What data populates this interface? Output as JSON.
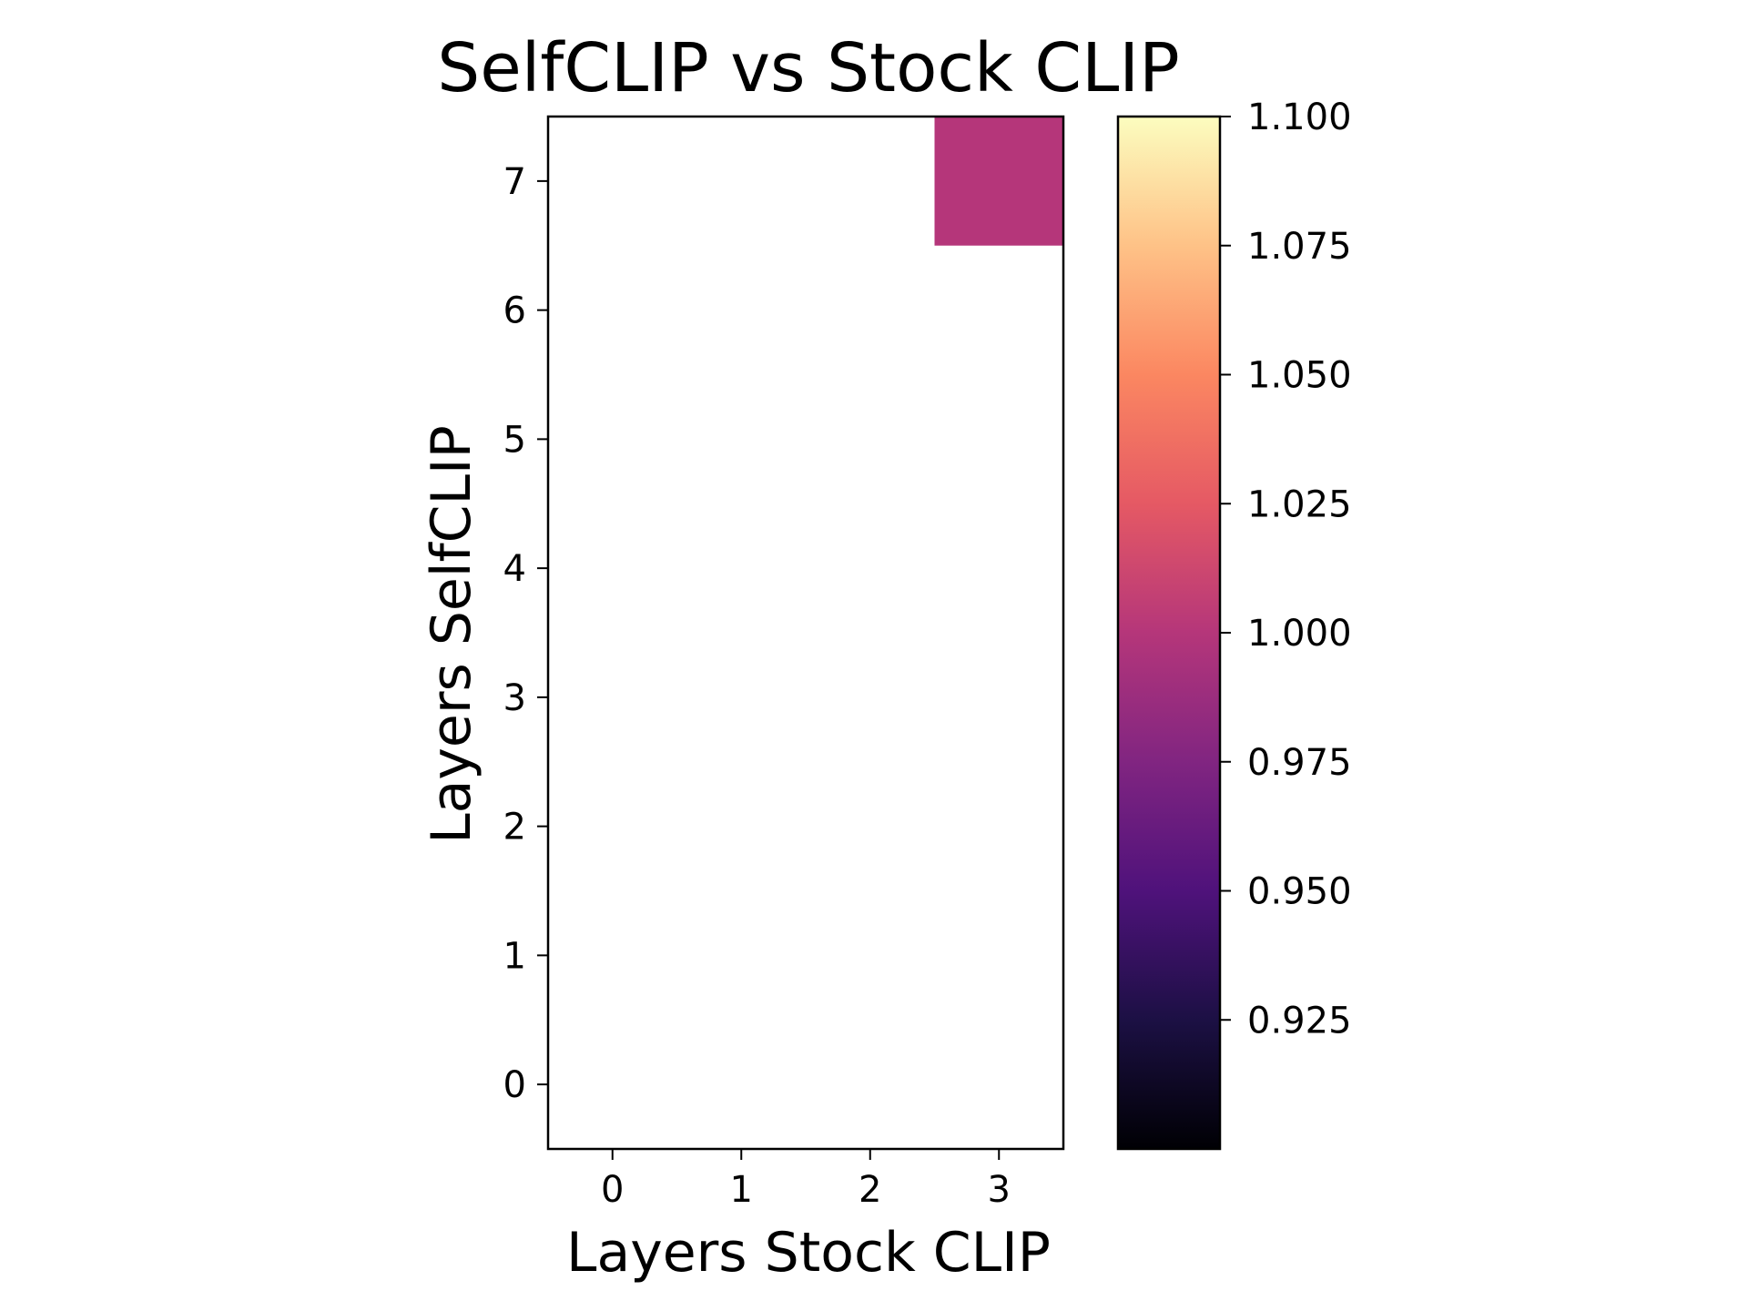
{
  "chart_data": {
    "type": "heatmap",
    "title": "SelfCLIP vs Stock CLIP",
    "xlabel": "Layers Stock CLIP",
    "ylabel": "Layers SelfCLIP",
    "x_ticks": [
      "0",
      "1",
      "2",
      "3"
    ],
    "y_ticks": [
      "0",
      "1",
      "2",
      "3",
      "4",
      "5",
      "6",
      "7"
    ],
    "x_range": [
      -0.5,
      3.5
    ],
    "y_range": [
      -0.5,
      7.5
    ],
    "cells": [
      {
        "x": 3,
        "y": 7,
        "value": 1.0
      }
    ],
    "empty_cells": "blank (no value)",
    "colormap": "magma",
    "colorbar": {
      "range": [
        0.9,
        1.1
      ],
      "ticks": [
        "0.925",
        "0.950",
        "0.975",
        "1.000",
        "1.025",
        "1.050",
        "1.075",
        "1.100"
      ],
      "placement": "right"
    },
    "grid": false,
    "colors": {
      "colormap_stops": [
        "#000004",
        "#1c1044",
        "#4f127b",
        "#812581",
        "#b5367a",
        "#e55964",
        "#fb8761",
        "#fec287",
        "#fcfdbf"
      ]
    }
  }
}
